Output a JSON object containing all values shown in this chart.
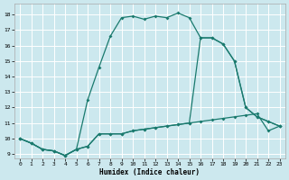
{
  "title": "",
  "xlabel": "Humidex (Indice chaleur)",
  "ylabel": "",
  "bg_color": "#cce8ee",
  "grid_color": "#ffffff",
  "line_color": "#1a7a6e",
  "xlim": [
    -0.5,
    23.5
  ],
  "ylim": [
    8.7,
    18.7
  ],
  "xticks": [
    0,
    1,
    2,
    3,
    4,
    5,
    6,
    7,
    8,
    9,
    10,
    11,
    12,
    13,
    14,
    15,
    16,
    17,
    18,
    19,
    20,
    21,
    22,
    23
  ],
  "yticks": [
    9,
    10,
    11,
    12,
    13,
    14,
    15,
    16,
    17,
    18
  ],
  "line1_x": [
    0,
    1,
    2,
    3,
    4,
    5,
    6,
    7,
    8,
    9,
    10,
    11,
    12,
    13,
    14,
    15,
    16,
    17,
    18,
    19,
    20,
    21,
    22,
    23
  ],
  "line1_y": [
    10.0,
    9.7,
    9.3,
    9.2,
    8.9,
    9.3,
    9.5,
    10.3,
    10.3,
    10.3,
    10.5,
    10.6,
    10.7,
    10.8,
    10.9,
    11.0,
    11.1,
    11.2,
    11.3,
    11.4,
    11.5,
    11.6,
    10.5,
    10.8
  ],
  "line2_x": [
    0,
    1,
    2,
    3,
    4,
    5,
    6,
    7,
    8,
    9,
    10,
    11,
    12,
    13,
    14,
    15,
    16,
    17,
    18,
    19,
    20,
    21,
    22,
    23
  ],
  "line2_y": [
    10.0,
    9.7,
    9.3,
    9.2,
    8.9,
    9.3,
    12.5,
    14.6,
    16.6,
    17.8,
    17.9,
    17.7,
    17.9,
    17.8,
    18.1,
    17.8,
    16.5,
    16.5,
    16.1,
    15.0,
    12.0,
    11.4,
    11.1,
    10.8
  ],
  "line3_x": [
    0,
    1,
    2,
    3,
    4,
    5,
    6,
    7,
    8,
    9,
    10,
    11,
    12,
    13,
    14,
    15,
    16,
    17,
    18,
    19,
    20,
    21,
    22,
    23
  ],
  "line3_y": [
    10.0,
    9.7,
    9.3,
    9.2,
    8.9,
    9.3,
    9.5,
    10.3,
    10.3,
    10.3,
    10.5,
    10.6,
    10.7,
    10.8,
    10.9,
    11.0,
    16.5,
    16.5,
    16.1,
    15.0,
    12.0,
    11.4,
    11.1,
    10.8
  ]
}
